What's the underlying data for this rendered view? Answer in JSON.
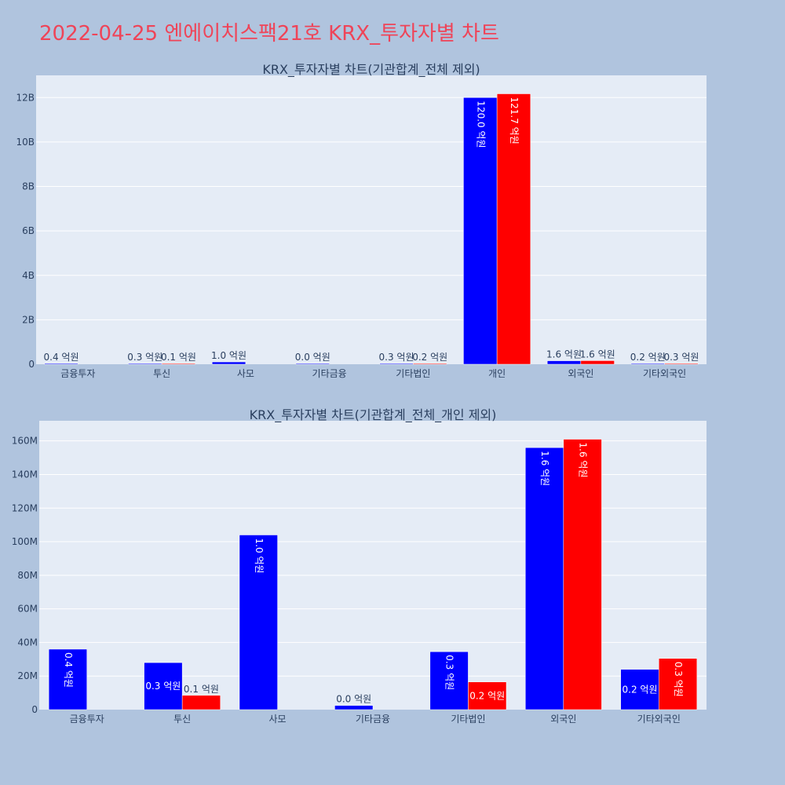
{
  "page_title": "2022-04-25 엔에이치스팩21호 KRX_투자자별 차트",
  "colors": {
    "background": "#b0c4de",
    "plot_bg": "#e5ecf6",
    "series_1": "#0000ff",
    "series_2": "#ff0000",
    "title": "#ef4458",
    "text": "#2a3f5f"
  },
  "chart_data": [
    {
      "type": "bar",
      "title": "KRX_투자자별 차트(기관합계_전체 제외)",
      "categories": [
        "금융투자",
        "투신",
        "사모",
        "기타금융",
        "기타법인",
        "개인",
        "외국인",
        "기타외국인"
      ],
      "ylim": [
        0,
        13000000000
      ],
      "yticks": [
        0,
        2000000000,
        4000000000,
        6000000000,
        8000000000,
        10000000000,
        12000000000
      ],
      "ytick_labels": [
        "0",
        "2B",
        "4B",
        "6B",
        "8B",
        "10B",
        "12B"
      ],
      "series": [
        {
          "color": "#0000ff",
          "values": [
            36000000,
            28000000,
            104000000,
            2500000,
            34500000,
            12000000000,
            156000000,
            24000000
          ],
          "labels": [
            "0.4 억원",
            "0.3 억원",
            "1.0 억원",
            "0.0 억원",
            "0.3 억원",
            "120.0 억원",
            "1.6 억원",
            "0.2 억원"
          ]
        },
        {
          "color": "#ff0000",
          "values": [
            null,
            8500000,
            null,
            null,
            16500000,
            12170000000,
            161000000,
            30500000
          ],
          "labels": [
            null,
            "0.1 억원",
            null,
            null,
            "0.2 억원",
            "121.7 억원",
            "1.6 억원",
            "0.3 억원"
          ]
        }
      ],
      "grid": true,
      "legend": "none"
    },
    {
      "type": "bar",
      "title": "KRX_투자자별 차트(기관합계_전체_개인 제외)",
      "categories": [
        "금융투자",
        "투신",
        "사모",
        "기타금융",
        "기타법인",
        "외국인",
        "기타외국인"
      ],
      "ylim": [
        0,
        172000000
      ],
      "yticks": [
        0,
        20000000,
        40000000,
        60000000,
        80000000,
        100000000,
        120000000,
        140000000,
        160000000
      ],
      "ytick_labels": [
        "0",
        "20M",
        "40M",
        "60M",
        "80M",
        "100M",
        "120M",
        "140M",
        "160M"
      ],
      "series": [
        {
          "color": "#0000ff",
          "values": [
            36000000,
            28000000,
            104000000,
            2500000,
            34500000,
            156000000,
            24000000
          ],
          "labels": [
            "0.4 억원",
            "0.3 억원",
            "1.0 억원",
            "0.0 억원",
            "0.3 억원",
            "1.6 억원",
            "0.2 억원"
          ]
        },
        {
          "color": "#ff0000",
          "values": [
            null,
            8500000,
            null,
            null,
            16500000,
            161000000,
            30500000
          ],
          "labels": [
            null,
            "0.1 억원",
            null,
            null,
            "0.2 억원",
            "1.6 억원",
            "0.3 억원"
          ]
        }
      ],
      "grid": true,
      "legend": "none"
    }
  ]
}
